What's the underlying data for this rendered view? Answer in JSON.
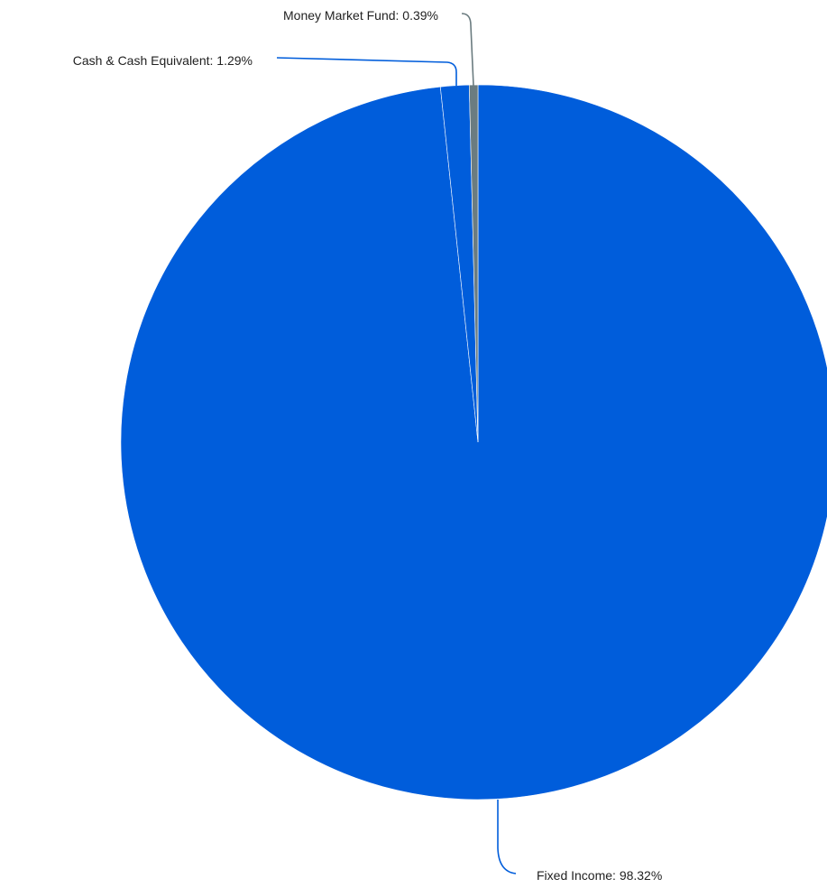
{
  "chart_data": {
    "type": "pie",
    "title": "",
    "start_angle_deg": 0,
    "direction": "clockwise",
    "slices": [
      {
        "name": "Fixed Income",
        "value": 98.32,
        "label": "Fixed Income: 98.32%",
        "color": "#005ddb"
      },
      {
        "name": "Cash & Cash Equivalent",
        "value": 1.29,
        "label": "Cash & Cash Equivalent: 1.29%",
        "color": "#005ddb"
      },
      {
        "name": "Money Market Fund",
        "value": 0.39,
        "label": "Money Market Fund: 0.39%",
        "color": "#6b7c80"
      }
    ],
    "slice_border_color": "#ffffff",
    "legend": "none"
  }
}
